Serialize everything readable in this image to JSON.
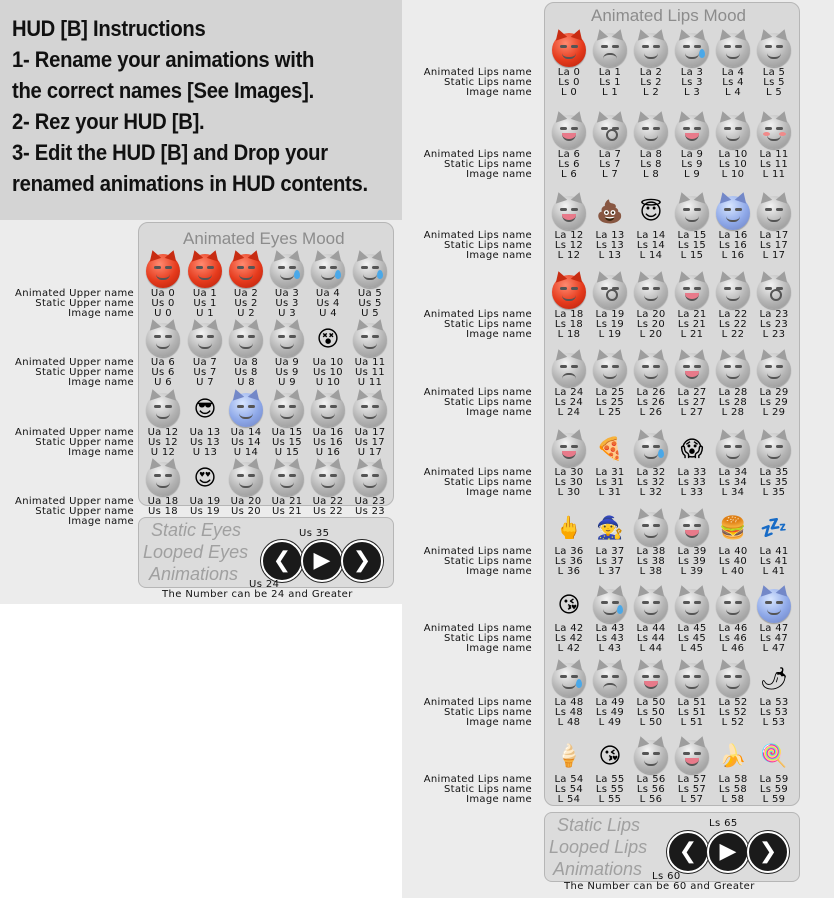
{
  "instructions": [
    "HUD [B] Instructions",
    "1- Rename your animations with",
    "the correct names [See Images].",
    "2- Rez your HUD [B].",
    "3- Edit the HUD [B] and Drop your",
    "renamed animations in HUD contents."
  ],
  "eyes_panel": {
    "title": "Animated Eyes Mood",
    "row_labels": [
      "Animated Upper name",
      "Static Upper name",
      "Image name"
    ],
    "items": [
      {
        "a": "Ua 0",
        "s": "Us 0",
        "i": "U 0",
        "icon": "angry-red"
      },
      {
        "a": "Ua 1",
        "s": "Us 1",
        "i": "U 1",
        "icon": "angry-red"
      },
      {
        "a": "Ua 2",
        "s": "Us 2",
        "i": "U 2",
        "icon": "angry-red"
      },
      {
        "a": "Ua 3",
        "s": "Us 3",
        "i": "U 3",
        "icon": "sad-tear"
      },
      {
        "a": "Ua 4",
        "s": "Us 4",
        "i": "U 4",
        "icon": "sad-tear"
      },
      {
        "a": "Ua 5",
        "s": "Us 5",
        "i": "U 5",
        "icon": "sad-tear"
      },
      {
        "a": "Ua 6",
        "s": "Us 6",
        "i": "U 6",
        "icon": "neutral"
      },
      {
        "a": "Ua 7",
        "s": "Us 7",
        "i": "U 7",
        "icon": "neutral"
      },
      {
        "a": "Ua 8",
        "s": "Us 8",
        "i": "U 8",
        "icon": "closed-eyes"
      },
      {
        "a": "Ua 9",
        "s": "Us 9",
        "i": "U 9",
        "icon": "wink"
      },
      {
        "a": "Ua 10",
        "s": "Us 10",
        "i": "U 10",
        "icon": "x-eyes"
      },
      {
        "a": "Ua 11",
        "s": "Us 11",
        "i": "U 11",
        "icon": "neutral"
      },
      {
        "a": "Ua 12",
        "s": "Us 12",
        "i": "U 12",
        "icon": "wide-eyes"
      },
      {
        "a": "Ua 13",
        "s": "Us 13",
        "i": "U 13",
        "icon": "sunglasses"
      },
      {
        "a": "Ua 14",
        "s": "Us 14",
        "i": "U 14",
        "icon": "blue-face"
      },
      {
        "a": "Ua 15",
        "s": "Us 15",
        "i": "U 15",
        "icon": "neutral"
      },
      {
        "a": "Ua 16",
        "s": "Us 16",
        "i": "U 16",
        "icon": "relieved"
      },
      {
        "a": "Ua 17",
        "s": "Us 17",
        "i": "U 17",
        "icon": "neutral"
      },
      {
        "a": "Ua 18",
        "s": "Us 18",
        "i": "U 18",
        "icon": "squint"
      },
      {
        "a": "Ua 19",
        "s": "Us 19",
        "i": "U 19",
        "icon": "heart-eyes"
      },
      {
        "a": "Ua 20",
        "s": "Us 20",
        "i": "U 20",
        "icon": "closed-eyes"
      },
      {
        "a": "Ua 21",
        "s": "Us 21",
        "i": "U 21",
        "icon": "neutral"
      },
      {
        "a": "Ua 22",
        "s": "Us 22",
        "i": "U 22",
        "icon": "closed-eyes"
      },
      {
        "a": "Ua 23",
        "s": "Us 23",
        "i": "U 23",
        "icon": "neutral"
      }
    ]
  },
  "eyes_controls": {
    "lines": [
      "Static Eyes",
      "Looped Eyes",
      "Animations"
    ],
    "top_value": "Us 35",
    "bottom_value": "Us 24",
    "note": "The Number can be 24 and Greater"
  },
  "lips_panel": {
    "title": "Animated Lips Mood",
    "row_labels": [
      "Animated Lips name",
      "Static Lips name",
      "Image name"
    ],
    "items": [
      {
        "a": "La 0",
        "s": "Ls 0",
        "i": "L 0",
        "icon": "angry-red"
      },
      {
        "a": "La 1",
        "s": "Ls 1",
        "i": "L 1",
        "icon": "frown"
      },
      {
        "a": "La 2",
        "s": "Ls 2",
        "i": "L 2",
        "icon": "neutral"
      },
      {
        "a": "La 3",
        "s": "Ls 3",
        "i": "L 3",
        "icon": "sad-tear"
      },
      {
        "a": "La 4",
        "s": "Ls 4",
        "i": "L 4",
        "icon": "neutral"
      },
      {
        "a": "La 5",
        "s": "Ls 5",
        "i": "L 5",
        "icon": "smile"
      },
      {
        "a": "La 6",
        "s": "Ls 6",
        "i": "L 6",
        "icon": "tongue"
      },
      {
        "a": "La 7",
        "s": "Ls 7",
        "i": "L 7",
        "icon": "surprised"
      },
      {
        "a": "La 8",
        "s": "Ls 8",
        "i": "L 8",
        "icon": "grin"
      },
      {
        "a": "La 9",
        "s": "Ls 9",
        "i": "L 9",
        "icon": "tongue"
      },
      {
        "a": "La 10",
        "s": "Ls 10",
        "i": "L 10",
        "icon": "neutral"
      },
      {
        "a": "La 11",
        "s": "Ls 11",
        "i": "L 11",
        "icon": "blush"
      },
      {
        "a": "La 12",
        "s": "Ls 12",
        "i": "L 12",
        "icon": "tongue"
      },
      {
        "a": "La 13",
        "s": "Ls 13",
        "i": "L 13",
        "icon": "poop"
      },
      {
        "a": "La 14",
        "s": "Ls 14",
        "i": "L 14",
        "icon": "halo"
      },
      {
        "a": "La 15",
        "s": "Ls 15",
        "i": "L 15",
        "icon": "neutral"
      },
      {
        "a": "La 16",
        "s": "Ls 16",
        "i": "L 16",
        "icon": "blue-face"
      },
      {
        "a": "La 17",
        "s": "Ls 17",
        "i": "L 17",
        "icon": "smile"
      },
      {
        "a": "La 18",
        "s": "Ls 18",
        "i": "L 18",
        "icon": "angry-red"
      },
      {
        "a": "La 19",
        "s": "Ls 19",
        "i": "L 19",
        "icon": "surprised"
      },
      {
        "a": "La 20",
        "s": "Ls 20",
        "i": "L 20",
        "icon": "neutral"
      },
      {
        "a": "La 21",
        "s": "Ls 21",
        "i": "L 21",
        "icon": "tongue"
      },
      {
        "a": "La 22",
        "s": "Ls 22",
        "i": "L 22",
        "icon": "neutral"
      },
      {
        "a": "La 23",
        "s": "Ls 23",
        "i": "L 23",
        "icon": "surprised"
      },
      {
        "a": "La 24",
        "s": "Ls 24",
        "i": "L 24",
        "icon": "frown"
      },
      {
        "a": "La 25",
        "s": "Ls 25",
        "i": "L 25",
        "icon": "neutral"
      },
      {
        "a": "La 26",
        "s": "Ls 26",
        "i": "L 26",
        "icon": "neutral"
      },
      {
        "a": "La 27",
        "s": "Ls 27",
        "i": "L 27",
        "icon": "tongue"
      },
      {
        "a": "La 28",
        "s": "Ls 28",
        "i": "L 28",
        "icon": "grin"
      },
      {
        "a": "La 29",
        "s": "Ls 29",
        "i": "L 29",
        "icon": "grimace"
      },
      {
        "a": "La 30",
        "s": "Ls 30",
        "i": "L 30",
        "icon": "tongue"
      },
      {
        "a": "La 31",
        "s": "Ls 31",
        "i": "L 31",
        "icon": "pizza"
      },
      {
        "a": "La 32",
        "s": "Ls 32",
        "i": "L 32",
        "icon": "drool"
      },
      {
        "a": "La 33",
        "s": "Ls 33",
        "i": "L 33",
        "icon": "scream"
      },
      {
        "a": "La 34",
        "s": "Ls 34",
        "i": "L 34",
        "icon": "neutral"
      },
      {
        "a": "La 35",
        "s": "Ls 35",
        "i": "L 35",
        "icon": "neutral"
      },
      {
        "a": "La 36",
        "s": "Ls 36",
        "i": "L 36",
        "icon": "middle-finger"
      },
      {
        "a": "La 37",
        "s": "Ls 37",
        "i": "L 37",
        "icon": "witch-hat"
      },
      {
        "a": "La 38",
        "s": "Ls 38",
        "i": "L 38",
        "icon": "neutral"
      },
      {
        "a": "La 39",
        "s": "Ls 39",
        "i": "L 39",
        "icon": "tongue"
      },
      {
        "a": "La 40",
        "s": "Ls 40",
        "i": "L 40",
        "icon": "burger"
      },
      {
        "a": "La 41",
        "s": "Ls 41",
        "i": "L 41",
        "icon": "sleep"
      },
      {
        "a": "La 42",
        "s": "Ls 42",
        "i": "L 42",
        "icon": "kiss"
      },
      {
        "a": "La 43",
        "s": "Ls 43",
        "i": "L 43",
        "icon": "sad-tear"
      },
      {
        "a": "La 44",
        "s": "Ls 44",
        "i": "L 44",
        "icon": "neutral"
      },
      {
        "a": "La 45",
        "s": "Ls 45",
        "i": "L 45",
        "icon": "neutral"
      },
      {
        "a": "La 46",
        "s": "Ls 46",
        "i": "L 46",
        "icon": "neutral"
      },
      {
        "a": "La 47",
        "s": "Ls 47",
        "i": "L 47",
        "icon": "blue-face"
      },
      {
        "a": "La 48",
        "s": "Ls 48",
        "i": "L 48",
        "icon": "drool"
      },
      {
        "a": "La 49",
        "s": "Ls 49",
        "i": "L 49",
        "icon": "frown"
      },
      {
        "a": "La 50",
        "s": "Ls 50",
        "i": "L 50",
        "icon": "tongue"
      },
      {
        "a": "La 51",
        "s": "Ls 51",
        "i": "L 51",
        "icon": "neutral"
      },
      {
        "a": "La 52",
        "s": "Ls 52",
        "i": "L 52",
        "icon": "neutral"
      },
      {
        "a": "La 53",
        "s": "Ls 53",
        "i": "L 53",
        "icon": "chili"
      },
      {
        "a": "La 54",
        "s": "Ls 54",
        "i": "L 54",
        "icon": "ice-cream"
      },
      {
        "a": "La 55",
        "s": "Ls 55",
        "i": "L 55",
        "icon": "kiss"
      },
      {
        "a": "La 56",
        "s": "Ls 56",
        "i": "L 56",
        "icon": "neutral"
      },
      {
        "a": "La 57",
        "s": "Ls 57",
        "i": "L 57",
        "icon": "tongue"
      },
      {
        "a": "La 58",
        "s": "Ls 58",
        "i": "L 58",
        "icon": "banana"
      },
      {
        "a": "La 59",
        "s": "Ls 59",
        "i": "L 59",
        "icon": "popsicle"
      }
    ]
  },
  "lips_controls": {
    "lines": [
      "Static Lips",
      "Looped Lips",
      "Animations"
    ],
    "top_value": "Ls 65",
    "bottom_value": "Ls 60",
    "note": "The Number can be 60 and Greater"
  },
  "controls": {
    "prev": "❮",
    "play": "▶",
    "next": "❯"
  },
  "glyphs": {
    "poop": "💩",
    "pizza": "🍕",
    "burger": "🍔",
    "chili": "🌶",
    "banana": "🍌",
    "ice-cream": "🍦",
    "popsicle": "🍭",
    "witch-hat": "🧙",
    "middle-finger": "🖕",
    "sleep": "💤",
    "heart-eyes": "😍",
    "sunglasses": "😎",
    "halo": "😇",
    "kiss": "😘",
    "scream": "😱",
    "x-eyes": "😵"
  },
  "colors": {
    "instr_bg": "#d4d4d4",
    "panel_bg": "#d9d9d9",
    "angry": "#e53a1c",
    "blue": "#8ea8e8"
  }
}
